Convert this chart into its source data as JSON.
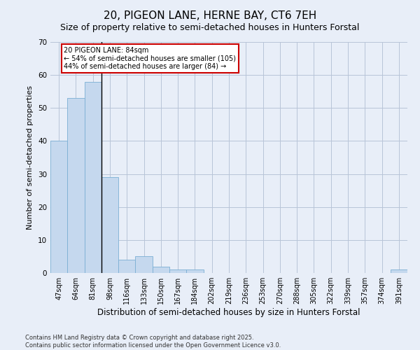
{
  "title": "20, PIGEON LANE, HERNE BAY, CT6 7EH",
  "subtitle": "Size of property relative to semi-detached houses in Hunters Forstal",
  "xlabel": "Distribution of semi-detached houses by size in Hunters Forstal",
  "ylabel": "Number of semi-detached properties",
  "categories": [
    "47sqm",
    "64sqm",
    "81sqm",
    "98sqm",
    "116sqm",
    "133sqm",
    "150sqm",
    "167sqm",
    "184sqm",
    "202sqm",
    "219sqm",
    "236sqm",
    "253sqm",
    "270sqm",
    "288sqm",
    "305sqm",
    "322sqm",
    "339sqm",
    "357sqm",
    "374sqm",
    "391sqm"
  ],
  "values": [
    40,
    53,
    58,
    29,
    4,
    5,
    2,
    1,
    1,
    0,
    0,
    0,
    0,
    0,
    0,
    0,
    0,
    0,
    0,
    0,
    1
  ],
  "bar_color": "#c5d8ee",
  "bar_edge_color": "#7bafd4",
  "annotation_title": "20 PIGEON LANE: 84sqm",
  "annotation_line1": "← 54% of semi-detached houses are smaller (105)",
  "annotation_line2": "44% of semi-detached houses are larger (84) →",
  "annotation_box_color": "#ffffff",
  "annotation_box_edge": "#cc0000",
  "footer_line1": "Contains HM Land Registry data © Crown copyright and database right 2025.",
  "footer_line2": "Contains public sector information licensed under the Open Government Licence v3.0.",
  "ylim": [
    0,
    70
  ],
  "bg_color": "#e8eef8",
  "plot_bg_color": "#e8eef8",
  "grid_color": "#b8c4d8",
  "title_fontsize": 11,
  "subtitle_fontsize": 9,
  "tick_fontsize": 7,
  "ylabel_fontsize": 8,
  "xlabel_fontsize": 8.5
}
